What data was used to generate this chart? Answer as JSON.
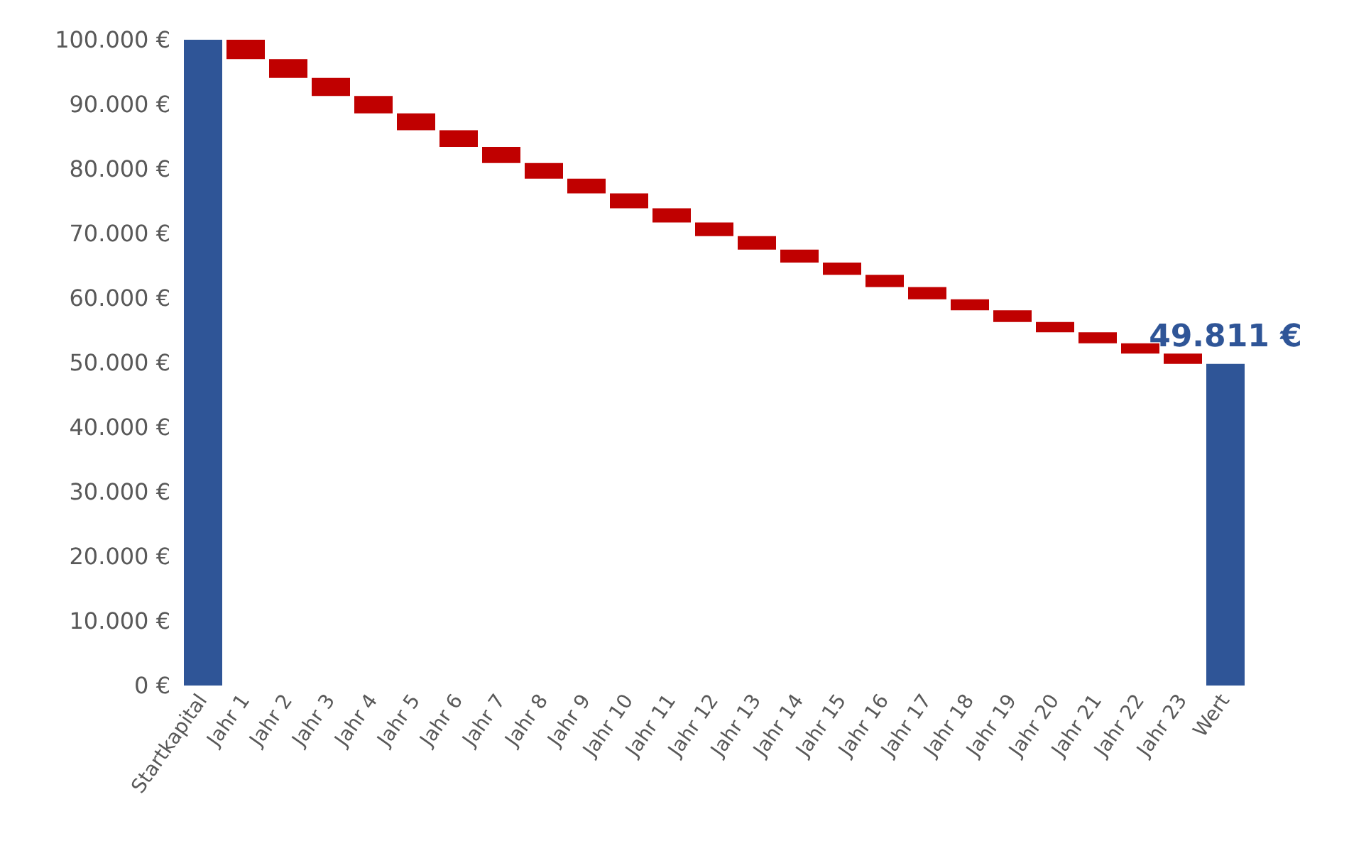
{
  "chart_data": {
    "type": "bar",
    "categories": [
      "Startkapital",
      "Jahr 1",
      "Jahr 2",
      "Jahr 3",
      "Jahr 4",
      "Jahr 5",
      "Jahr 6",
      "Jahr 7",
      "Jahr 8",
      "Jahr 9",
      "Jahr 10",
      "Jahr 11",
      "Jahr 12",
      "Jahr 13",
      "Jahr 14",
      "Jahr 15",
      "Jahr 16",
      "Jahr 17",
      "Jahr 18",
      "Jahr 19",
      "Jahr 20",
      "Jahr 21",
      "Jahr 22",
      "Jahr 23",
      "Wert"
    ],
    "values": [
      100000,
      -3000,
      -2900,
      -2800,
      -2700,
      -2600,
      -2600,
      -2500,
      -2400,
      -2300,
      -2300,
      -2200,
      -2100,
      -2100,
      -2000,
      -1900,
      -1900,
      -1900,
      -1700,
      -1800,
      -1600,
      -1700,
      -1600,
      -1589,
      49811
    ],
    "base": [
      0,
      100000,
      97000,
      94100,
      91300,
      88600,
      86000,
      83400,
      80900,
      78500,
      76200,
      73900,
      71700,
      69600,
      67500,
      65500,
      63600,
      61700,
      59800,
      58100,
      56300,
      54700,
      53000,
      51400,
      0
    ],
    "colors": [
      "#2f5597",
      "#c00000",
      "#c00000",
      "#c00000",
      "#c00000",
      "#c00000",
      "#c00000",
      "#c00000",
      "#c00000",
      "#c00000",
      "#c00000",
      "#c00000",
      "#c00000",
      "#c00000",
      "#c00000",
      "#c00000",
      "#c00000",
      "#c00000",
      "#c00000",
      "#c00000",
      "#c00000",
      "#c00000",
      "#c00000",
      "#c00000",
      "#2f5597"
    ],
    "value_labels": [
      null,
      null,
      null,
      null,
      null,
      null,
      null,
      null,
      null,
      null,
      null,
      null,
      null,
      null,
      null,
      null,
      null,
      null,
      null,
      null,
      null,
      null,
      null,
      null,
      "49.811 €"
    ],
    "ylim": [
      0,
      100000
    ],
    "yticks": [
      {
        "value": 0,
        "label": "0 €"
      },
      {
        "value": 10000,
        "label": "10.000 €"
      },
      {
        "value": 20000,
        "label": "20.000 €"
      },
      {
        "value": 30000,
        "label": "30.000 €"
      },
      {
        "value": 40000,
        "label": "40.000 €"
      },
      {
        "value": 50000,
        "label": "50.000 €"
      },
      {
        "value": 60000,
        "label": "60.000 €"
      },
      {
        "value": 70000,
        "label": "70.000 €"
      },
      {
        "value": 80000,
        "label": "80.000 €"
      },
      {
        "value": 90000,
        "label": "90.000 €"
      },
      {
        "value": 100000,
        "label": "100.000 €"
      }
    ],
    "grid": false
  }
}
